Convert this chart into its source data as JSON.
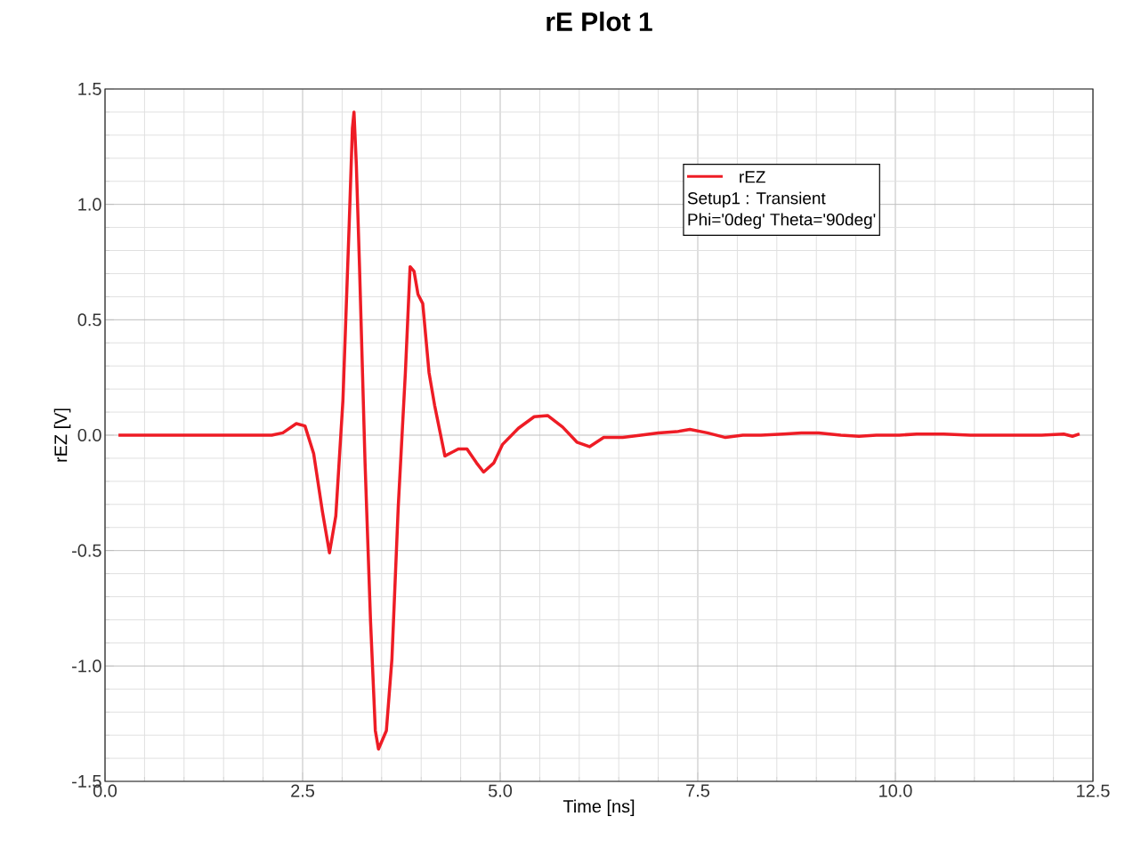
{
  "chart_data": {
    "type": "line",
    "title": "rE Plot 1",
    "xlabel": "Time [ns]",
    "ylabel": "rEZ [V]",
    "x": [
      0.17,
      2.11,
      2.25,
      2.42,
      2.53,
      2.64,
      2.75,
      2.84,
      2.92,
      3.01,
      3.09,
      3.13,
      3.15,
      3.18,
      3.22,
      3.29,
      3.36,
      3.42,
      3.46,
      3.56,
      3.63,
      3.71,
      3.8,
      3.86,
      3.91,
      3.96,
      4.02,
      4.1,
      4.17,
      4.3,
      4.47,
      4.58,
      4.7,
      4.79,
      4.92,
      5.03,
      5.23,
      5.43,
      5.6,
      5.79,
      5.97,
      6.13,
      6.31,
      6.55,
      6.78,
      7.0,
      7.23,
      7.4,
      7.62,
      7.85,
      8.07,
      8.3,
      8.58,
      8.81,
      9.03,
      9.31,
      9.54,
      9.76,
      10.05,
      10.27,
      10.61,
      10.95,
      11.4,
      11.85,
      12.13,
      12.24,
      12.33
    ],
    "series": [
      {
        "name": "rEZ",
        "color": "#ee1c25",
        "values": [
          0,
          0,
          0.01,
          0.05,
          0.04,
          -0.08,
          -0.33,
          -0.51,
          -0.35,
          0.15,
          0.92,
          1.33,
          1.4,
          1.17,
          0.73,
          -0.12,
          -0.81,
          -1.28,
          -1.36,
          -1.28,
          -0.97,
          -0.31,
          0.27,
          0.73,
          0.71,
          0.61,
          0.57,
          0.27,
          0.13,
          -0.09,
          -0.06,
          -0.06,
          -0.12,
          -0.16,
          -0.12,
          -0.04,
          0.03,
          0.08,
          0.085,
          0.035,
          -0.03,
          -0.05,
          -0.01,
          -0.01,
          0,
          0.01,
          0.015,
          0.025,
          0.01,
          -0.01,
          0,
          0,
          0.005,
          0.01,
          0.01,
          0,
          -0.005,
          0,
          0,
          0.005,
          0.005,
          0,
          0,
          0,
          0.005,
          -0.005,
          0.005
        ]
      }
    ],
    "annotations": [
      "Setup1 : Transient",
      "Phi='0deg' Theta='90deg'"
    ],
    "xlim": [
      0,
      12.5
    ],
    "ylim": [
      -1.5,
      1.5
    ],
    "xticks": [
      {
        "value": 0,
        "label": "0.0"
      },
      2.5,
      {
        "value": 5,
        "label": "5.0"
      },
      7.5,
      {
        "value": 10,
        "label": "10.0"
      },
      12.5
    ],
    "yticks": [
      -1.5,
      {
        "value": -1,
        "label": "-1.0"
      },
      -0.5,
      {
        "value": 0,
        "label": "0.0"
      },
      0.5,
      {
        "value": 1,
        "label": "1.0"
      },
      1.5
    ],
    "grid": true,
    "legend": "top right"
  }
}
